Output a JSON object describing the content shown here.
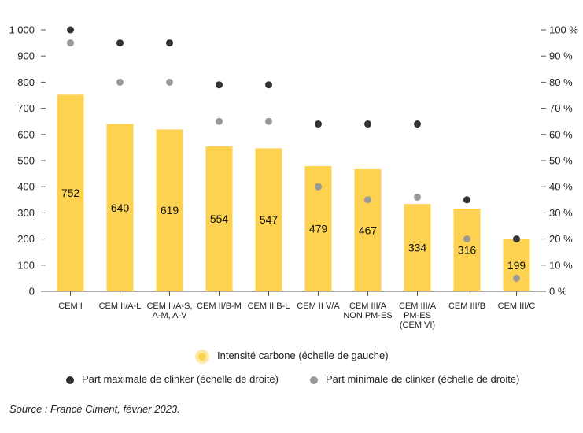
{
  "chart_data": {
    "type": "bar",
    "categories": [
      [
        "CEM I"
      ],
      [
        "CEM II/A-L"
      ],
      [
        "CEM II/A-S,",
        "A-M, A-V"
      ],
      [
        "CEM II/B-M"
      ],
      [
        "CEM II B-L"
      ],
      [
        "CEM II V/A"
      ],
      [
        "CEM III/A",
        "NON PM-ES"
      ],
      [
        "CEM III/A",
        "PM-ES",
        "(CEM VI)"
      ],
      [
        "CEM III/B"
      ],
      [
        "CEM III/C"
      ]
    ],
    "series": [
      {
        "name": "Intensité carbone (échelle de gauche)",
        "axis": "left",
        "type": "bar",
        "values": [
          752,
          640,
          619,
          554,
          547,
          479,
          467,
          334,
          316,
          199
        ]
      },
      {
        "name": "Part maximale de clinker (échelle de droite)",
        "axis": "right",
        "type": "scatter",
        "values": [
          100,
          95,
          95,
          79,
          79,
          64,
          64,
          64,
          35,
          20
        ]
      },
      {
        "name": "Part minimale de clinker (échelle de droite)",
        "axis": "right",
        "type": "scatter",
        "values": [
          95,
          80,
          80,
          65,
          65,
          40,
          35,
          36,
          20,
          5
        ]
      }
    ],
    "left_axis": {
      "ylim": [
        0,
        1000
      ],
      "ticks": [
        "0",
        "100",
        "200",
        "300",
        "400",
        "500",
        "600",
        "700",
        "800",
        "900",
        "1 000"
      ]
    },
    "right_axis": {
      "ylim": [
        0,
        100
      ],
      "ticks": [
        "0 %",
        "10 %",
        "20 %",
        "30 %",
        "40 %",
        "50 %",
        "60 %",
        "70 %",
        "80 %",
        "90 %",
        "100 %"
      ]
    },
    "grid": false,
    "legend_position": "bottom",
    "colors": {
      "bar": "#fdd250",
      "bar_halo": "#fde9a6",
      "max": "#333333",
      "min": "#999999"
    }
  },
  "source": "Source : France Ciment, février 2023."
}
